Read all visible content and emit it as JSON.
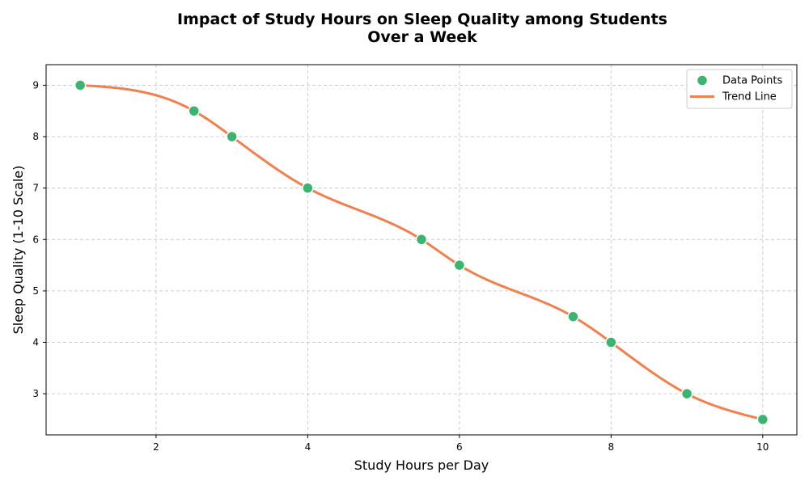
{
  "chart_data": {
    "type": "scatter",
    "title_line1": "Impact of Study Hours on Sleep Quality among Students",
    "title_line2": "Over a Week",
    "xlabel": "Study Hours per Day",
    "ylabel": "Sleep Quality (1-10 Scale)",
    "xlim": [
      0.55,
      10.45
    ],
    "ylim": [
      2.2,
      9.4
    ],
    "xticks": [
      2,
      4,
      6,
      8,
      10
    ],
    "yticks": [
      3,
      4,
      5,
      6,
      7,
      8,
      9
    ],
    "grid": true,
    "legend_position": "top-right",
    "series": [
      {
        "name": "Data Points",
        "kind": "scatter",
        "color": "#3cb371",
        "x": [
          1,
          2.5,
          3,
          4,
          5.5,
          6,
          7.5,
          8,
          9,
          10
        ],
        "y": [
          9,
          8.5,
          8,
          7,
          6,
          5.5,
          4.5,
          4,
          3,
          2.5
        ]
      },
      {
        "name": "Trend Line",
        "kind": "smooth-line",
        "color": "#f08050"
      }
    ]
  }
}
